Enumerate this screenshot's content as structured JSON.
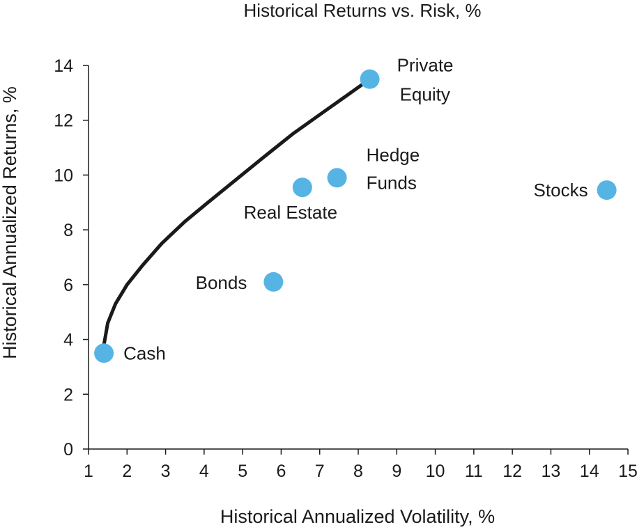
{
  "chart_data": {
    "type": "scatter",
    "title": "Historical Returns vs. Risk, %",
    "xlabel": "Historical Annualized Volatility, %",
    "ylabel": "Historical Annualized Returns, %",
    "xlim": [
      1,
      15
    ],
    "ylim": [
      0,
      14
    ],
    "xticks": [
      1,
      2,
      3,
      4,
      5,
      6,
      7,
      8,
      9,
      10,
      11,
      12,
      13,
      14,
      15
    ],
    "yticks": [
      0,
      2,
      4,
      6,
      8,
      10,
      12,
      14
    ],
    "grid": false,
    "point_color": "#56b4e5",
    "line_color": "#1a1a1a",
    "points": [
      {
        "label": "Cash",
        "x": 1.4,
        "y": 3.5
      },
      {
        "label": "Bonds",
        "x": 5.8,
        "y": 6.1
      },
      {
        "label": "Real Estate",
        "x": 6.55,
        "y": 9.55
      },
      {
        "label": "Hedge Funds",
        "x": 7.45,
        "y": 9.9
      },
      {
        "label": "Private Equity",
        "x": 8.3,
        "y": 13.5
      },
      {
        "label": "Stocks",
        "x": 14.45,
        "y": 9.45
      }
    ],
    "frontier": {
      "x": [
        1.4,
        1.5,
        1.7,
        2.0,
        2.4,
        2.9,
        3.5,
        4.1,
        4.8,
        5.5,
        6.3,
        7.1,
        7.8,
        8.3
      ],
      "y": [
        3.8,
        4.6,
        5.3,
        6.0,
        6.7,
        7.5,
        8.3,
        9.0,
        9.8,
        10.6,
        11.5,
        12.3,
        13.0,
        13.5
      ]
    }
  }
}
